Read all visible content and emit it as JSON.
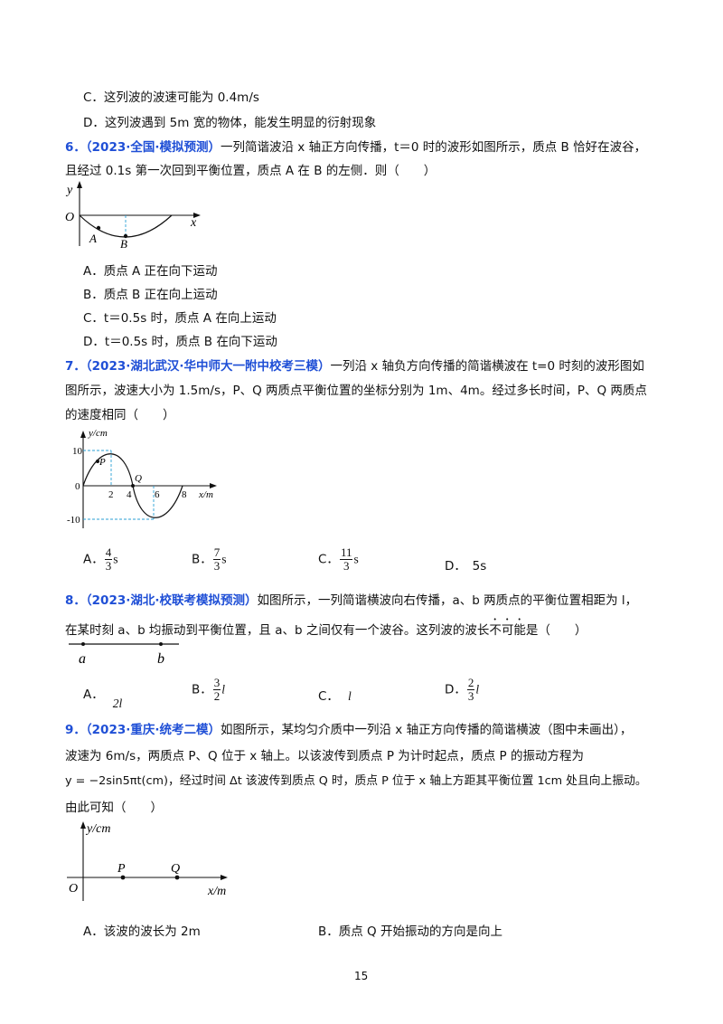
{
  "prev": {
    "optC": "C．这列波的波速可能为 0.4m/s",
    "optD": "D．这列波遇到 5m 宽的物体，能发生明显的衍射现象"
  },
  "q6": {
    "num": "6．",
    "source": "（2023·全国·模拟预测）",
    "line1": "一列简谐波沿 x 轴正方向传播，t＝0 时的波形如图所示，质点 B 恰好在波谷，",
    "line2": "且经过 0.1s 第一次回到平衡位置，质点 A 在 B 的左侧．则（　　）",
    "graph": {
      "y": "y",
      "o": "O",
      "x": "x",
      "a": "A",
      "b": "B"
    },
    "optA": "A．质点 A 正在向下运动",
    "optB": "B．质点 B 正在向上运动",
    "optC": "C．t＝0.5s 时，质点 A 在向上运动",
    "optD": "D．t＝0.5s 时，质点 B 在向下运动"
  },
  "q7": {
    "num": "7．",
    "source": "（2023·湖北武汉·华中师大一附中校考三模）",
    "line1": "一列沿 x 轴负方向传播的简谐横波在 t=0 时刻的波形图如",
    "line2": "图所示，波速大小为 1.5m/s，P、Q 两质点平衡位置的坐标分别为 1m、4m。经过多长时间，P、Q 两质点",
    "line3": "的速度相同（　　）",
    "graph": {
      "ylabel": "y/cm",
      "xlabel": "x/m",
      "o": "0",
      "y10": "10",
      "yneg10": "-10",
      "t2": "2",
      "t4": "4",
      "t6": "6",
      "t8": "8",
      "p": "P",
      "q": "Q"
    },
    "optA": {
      "label": "A．",
      "num": "4",
      "den": "3",
      "unit": "s"
    },
    "optB": {
      "label": "B．",
      "num": "7",
      "den": "3",
      "unit": "s"
    },
    "optC": {
      "label": "C．",
      "num": "11",
      "den": "3",
      "unit": "s"
    },
    "optD": "D．　5s"
  },
  "q8": {
    "num": "8．",
    "source": "（2023·湖北·校联考模拟预测）",
    "line1": "如图所示，一列简谐横波向右传播，a、b 两质点的平衡位置相距为 l，",
    "line2a": "在某时刻 a、b 均振动到平衡位置，且 a、b 之间仅有一个波谷。这列波的波长",
    "line2b": "不可能",
    "line2c": "是（　　）",
    "graph": {
      "a": "a",
      "b": "b"
    },
    "optA": {
      "label": "A．",
      "value": "2l"
    },
    "optB": {
      "label": "B．",
      "num": "3",
      "den": "2",
      "unit": "l"
    },
    "optC": {
      "label": "C．",
      "value": "l"
    },
    "optD": {
      "label": "D．",
      "num": "2",
      "den": "3",
      "unit": "l"
    }
  },
  "q9": {
    "num": "9．",
    "source": "（2023·重庆·统考二模）",
    "line1": "如图所示，某均匀介质中一列沿 x 轴正方向传播的简谐横波（图中未画出），",
    "line2": "波速为 6m/s，两质点 P、Q 位于 x 轴上。以该波传到质点 P 为计时起点，质点 P 的振动方程为",
    "line3": "y = −2sin5πt(cm)，经过时间 Δt 该波传到质点 Q 时，质点 P 位于 x 轴上方距其平衡位置 1cm 处且向上振动。",
    "line4": "由此可知（　　）",
    "graph": {
      "ylabel": "y/cm",
      "xlabel": "x/m",
      "o": "O",
      "p": "P",
      "q": "Q"
    },
    "optA": "A．该波的波长为 2m",
    "optB": "B．质点 Q 开始振动的方向是向上"
  },
  "page_number": "15"
}
